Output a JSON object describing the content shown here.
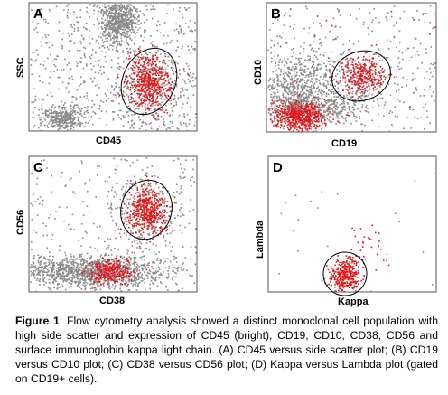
{
  "figure": {
    "panels": [
      {
        "letter": "A",
        "xlabel": "CD45",
        "ylabel": "SSC"
      },
      {
        "letter": "B",
        "xlabel": "CD19",
        "ylabel": "CD10"
      },
      {
        "letter": "C",
        "xlabel": "CD38",
        "ylabel": "CD56"
      },
      {
        "letter": "D",
        "xlabel": "Kappa",
        "ylabel": "Lambda"
      }
    ],
    "colors": {
      "background_events": "#8a8a8a",
      "gated_events": "#e31a1c",
      "gate": "#000000"
    },
    "caption": {
      "label": "Figure 1",
      "text": ": Flow cytometry analysis showed a distinct monoclonal cell population with high side scatter and expression of CD45 (bright), CD19, CD10, CD38, CD56 and surface immunoglobin kappa light chain. (A) CD45 versus side scatter plot; (B) CD19 versus CD10 plot; (C) CD38 versus CD56 plot; (D) Kappa versus Lambda plot (gated on CD19+ cells)."
    }
  }
}
